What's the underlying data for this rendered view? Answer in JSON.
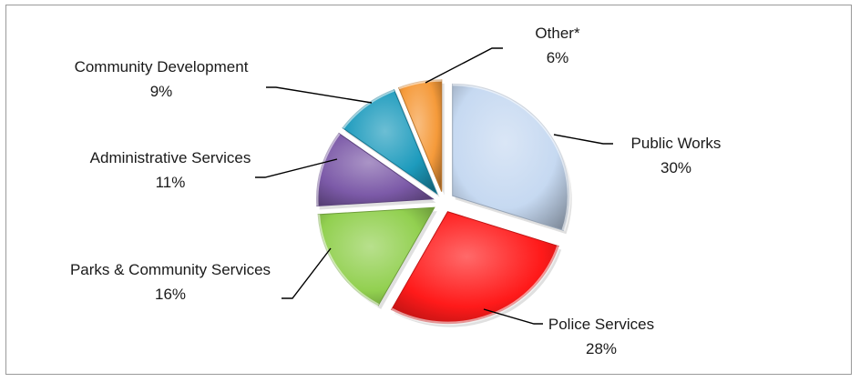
{
  "chart_data": {
    "type": "pie",
    "style": "3d-exploded",
    "title": "",
    "slices": [
      {
        "name": "Public Works",
        "value": 30,
        "value_label": "30%",
        "color": "#c6d9f1"
      },
      {
        "name": "Police Services",
        "value": 28,
        "value_label": "28%",
        "color": "#ff1a1a"
      },
      {
        "name": "Parks & Community Services",
        "value": 16,
        "value_label": "16%",
        "color": "#92d050"
      },
      {
        "name": "Administrative Services",
        "value": 11,
        "value_label": "11%",
        "color": "#7c5aa8"
      },
      {
        "name": "Community Development",
        "value": 9,
        "value_label": "9%",
        "color": "#1d9bbd"
      },
      {
        "name": "Other*",
        "value": 6,
        "value_label": "6%",
        "color": "#f59a3a"
      }
    ]
  }
}
